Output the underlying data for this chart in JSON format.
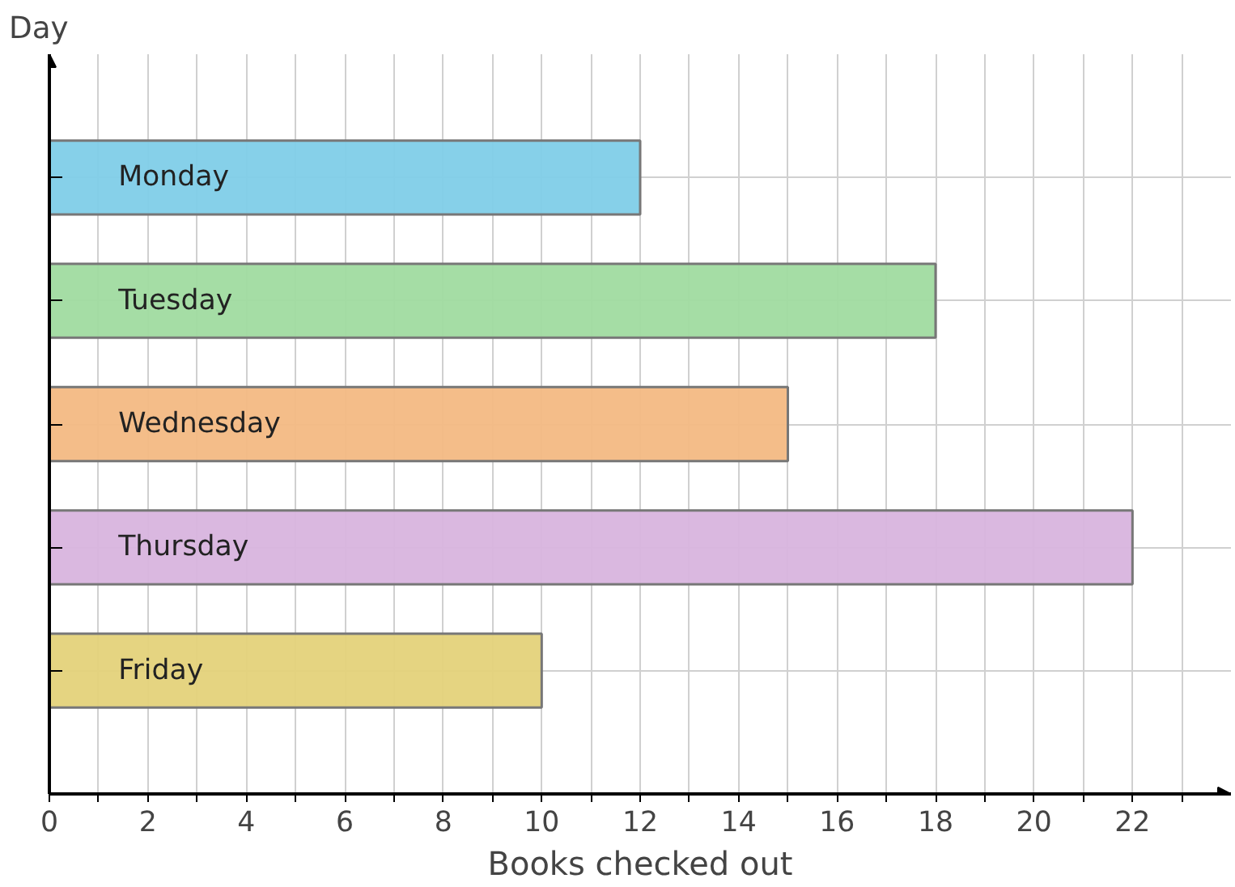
{
  "chart_data": {
    "type": "bar",
    "orientation": "horizontal",
    "xlabel": "Books checked out",
    "ylabel": "Day",
    "categories": [
      "Monday",
      "Tuesday",
      "Wednesday",
      "Thursday",
      "Friday"
    ],
    "values": [
      12,
      18,
      15,
      22,
      10
    ],
    "colors": [
      "#7fcde8",
      "#a0dba0",
      "#f3b983",
      "#d8b4de",
      "#e4d27a"
    ],
    "xlim": [
      0,
      24
    ],
    "xticks": [
      0,
      {
        "value": 1,
        "label": null
      },
      2,
      {
        "value": 3,
        "label": null
      },
      4,
      {
        "value": 5,
        "label": null
      },
      6,
      {
        "value": 7,
        "label": null
      },
      8,
      {
        "value": 9,
        "label": null
      },
      10,
      {
        "value": 11,
        "label": null
      },
      12,
      {
        "value": 13,
        "label": null
      },
      14,
      {
        "value": 15,
        "label": null
      },
      16,
      {
        "value": 17,
        "label": null
      },
      18,
      {
        "value": 19,
        "label": null
      },
      20,
      {
        "value": 21,
        "label": null
      },
      22,
      {
        "value": 23,
        "label": null
      }
    ],
    "grid": true
  }
}
